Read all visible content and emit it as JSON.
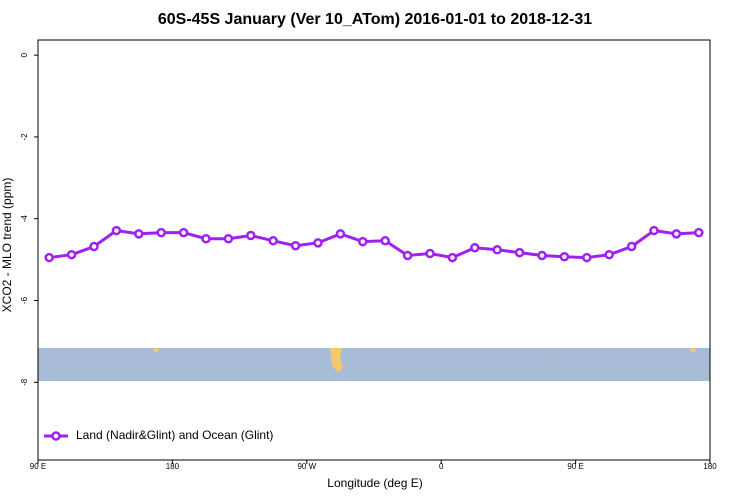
{
  "chart_data": {
    "type": "line",
    "title": "60S-45S January (Ver 10_ATom)   2016-01-01 to 2018-12-31",
    "xlabel": "Longitude (deg E)",
    "ylabel": "XCO2 - MLO trend (ppm)",
    "x": [
      97.5,
      112.5,
      127.5,
      142.5,
      157.5,
      172.5,
      187.5,
      202.5,
      217.5,
      232.5,
      247.5,
      262.5,
      277.5,
      292.5,
      307.5,
      322.5,
      337.5,
      352.5,
      367.5,
      382.5,
      397.5,
      412.5,
      427.5,
      442.5,
      457.5,
      472.5,
      487.5,
      502.5,
      517.5,
      532.5
    ],
    "series": [
      {
        "name": "Land (Nadir&Glint) and Ocean (Glint)",
        "color": "#a020f0",
        "values": [
          -4.95,
          -4.88,
          -4.68,
          -4.29,
          -4.37,
          -4.34,
          -4.34,
          -4.49,
          -4.49,
          -4.41,
          -4.54,
          -4.66,
          -4.59,
          -4.37,
          -4.56,
          -4.54,
          -4.9,
          -4.85,
          -4.95,
          -4.71,
          -4.76,
          -4.83,
          -4.9,
          -4.93,
          -4.95,
          -4.88,
          -4.68,
          -4.29,
          -4.37,
          -4.34
        ]
      }
    ],
    "xlim": [
      90,
      540
    ],
    "xticks": [
      {
        "value": 90,
        "label": "90 E"
      },
      {
        "value": 180,
        "label": "180"
      },
      {
        "value": 270,
        "label": "90 W"
      },
      {
        "value": 360,
        "label": "0"
      },
      {
        "value": 450,
        "label": "90 E"
      },
      {
        "value": 540,
        "label": "180"
      }
    ],
    "ylim": [
      -9.9,
      0.37
    ],
    "yticks": [
      0,
      -2,
      -4,
      -6,
      -8
    ],
    "legend": "bottom-left"
  }
}
